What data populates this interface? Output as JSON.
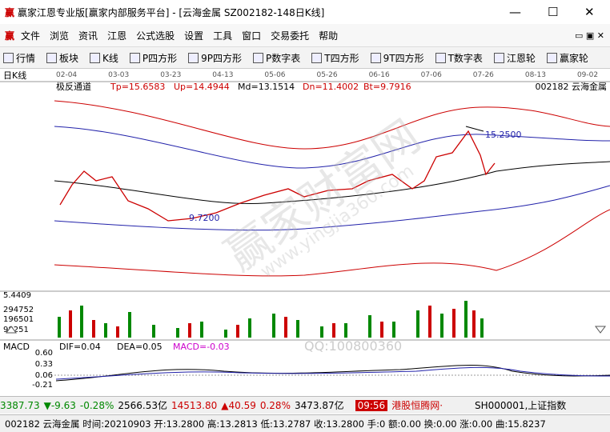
{
  "window": {
    "title": "赢家江恩专业版[赢家内部服务平台] - [云海金属  SZ002182-148日K线]"
  },
  "menu": {
    "items": [
      "文件",
      "浏览",
      "资讯",
      "江恩",
      "公式选股",
      "设置",
      "工具",
      "窗口",
      "交易委托",
      "帮助"
    ]
  },
  "toolbar": {
    "items": [
      "行情",
      "板块",
      "K线",
      "P四方形",
      "9P四方形",
      "P数字表",
      "T四方形",
      "9T四方形",
      "T数字表",
      "江恩轮",
      "赢家轮"
    ]
  },
  "chart": {
    "period": "日K线",
    "dates": [
      "02-04",
      "03-03",
      "03-23",
      "04-13",
      "05-06",
      "05-26",
      "06-16",
      "07-06",
      "07-26",
      "08-13",
      "09-02"
    ],
    "indicator": "极反通道",
    "tp": "Tp=15.6583",
    "up": "Up=14.4944",
    "md": "Md=13.1514",
    "dn": "Dn=11.4002",
    "bt": "Bt=9.7916",
    "stock": "002182 云海金属",
    "high_mark": "15.2500",
    "low_mark": "9.7200",
    "watermark": "赢家财富网",
    "watermark_url": "www.yingjia360.com"
  },
  "volume": {
    "labels": [
      "5.4409",
      "294752",
      "196501",
      "98251"
    ]
  },
  "macd": {
    "name": "MACD",
    "dif": "DIF=0.04",
    "dea": "DEA=0.05",
    "macd": "MACD=-0.03",
    "axis": [
      "0.60",
      "0.33",
      "0.06",
      "-0.21"
    ],
    "qq": "QQ:100800360"
  },
  "status": {
    "sh_index": "3387.73",
    "sh_change": "▼-9.63",
    "sh_pct": "-0.28%",
    "sh_amount": "2566.53亿",
    "sz_index": "14513.80",
    "sz_change": "▲40.59",
    "sz_pct": "0.28%",
    "sz_amount": "3473.87亿",
    "time": "09:56",
    "news": "港股恒腾网·",
    "code": "SH000001,上证指数"
  },
  "footer": {
    "text": "002182 云海金属 时间:20210903 开:13.2800 高:13.2813 低:13.2787 收:13.2800 手:0 额:0.00 换:0.00 涨:0.00 曲:15.8237"
  }
}
